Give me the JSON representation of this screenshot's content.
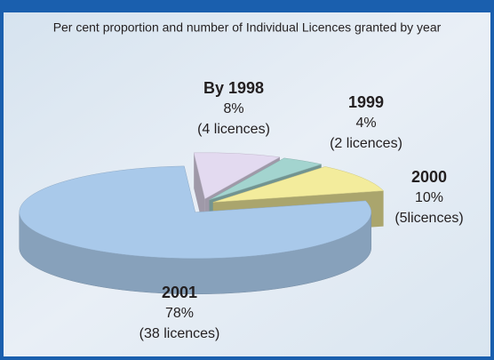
{
  "chart_data": {
    "type": "pie3d",
    "title": "Per cent proportion and number of Individual Licences granted by year",
    "categories": [
      "By 1998",
      "1999",
      "2000",
      "2001"
    ],
    "values": [
      8,
      4,
      10,
      78
    ],
    "value_labels": [
      "8%",
      "4%",
      "10%",
      "78%"
    ],
    "sublabels": [
      "(4 licences)",
      "(2 licences)",
      "(5licences)",
      "(38 licences)"
    ],
    "colors": [
      "#e3daf0",
      "#a3d4cf",
      "#f3ec9c",
      "#a9c9ea"
    ]
  }
}
